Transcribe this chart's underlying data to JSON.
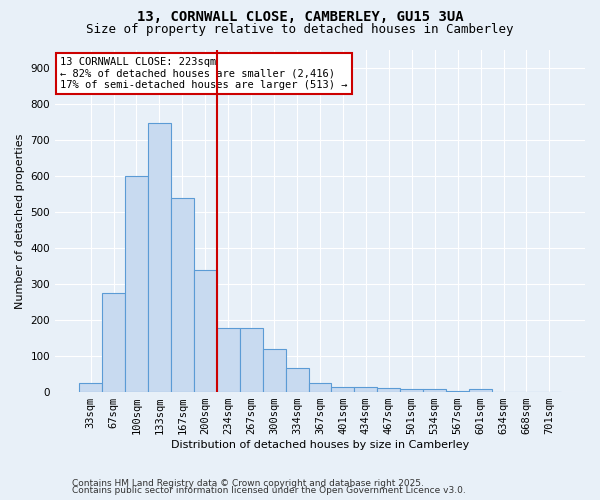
{
  "title1": "13, CORNWALL CLOSE, CAMBERLEY, GU15 3UA",
  "title2": "Size of property relative to detached houses in Camberley",
  "xlabel": "Distribution of detached houses by size in Camberley",
  "ylabel": "Number of detached properties",
  "bins": [
    "33sqm",
    "67sqm",
    "100sqm",
    "133sqm",
    "167sqm",
    "200sqm",
    "234sqm",
    "267sqm",
    "300sqm",
    "334sqm",
    "367sqm",
    "401sqm",
    "434sqm",
    "467sqm",
    "501sqm",
    "534sqm",
    "567sqm",
    "601sqm",
    "634sqm",
    "668sqm",
    "701sqm"
  ],
  "heights": [
    25,
    275,
    600,
    748,
    538,
    340,
    178,
    178,
    120,
    68,
    25,
    15,
    15,
    10,
    8,
    8,
    3,
    8,
    0,
    0,
    0
  ],
  "bar_facecolor": "#c8daf0",
  "bar_edgecolor": "#5b9bd5",
  "vline_x_index": 6,
  "vline_color": "#cc0000",
  "annotation_title": "13 CORNWALL CLOSE: 223sqm",
  "annotation_line1": "← 82% of detached houses are smaller (2,416)",
  "annotation_line2": "17% of semi-detached houses are larger (513) →",
  "annotation_box_facecolor": "#ffffff",
  "annotation_border_color": "#cc0000",
  "ylim": [
    0,
    950
  ],
  "yticks": [
    0,
    100,
    200,
    300,
    400,
    500,
    600,
    700,
    800,
    900
  ],
  "background_color": "#e8f0f8",
  "grid_color": "#ffffff",
  "footer1": "Contains HM Land Registry data © Crown copyright and database right 2025.",
  "footer2": "Contains public sector information licensed under the Open Government Licence v3.0.",
  "title_fontsize": 10,
  "subtitle_fontsize": 9,
  "axis_label_fontsize": 8,
  "tick_fontsize": 7.5,
  "footer_fontsize": 6.5
}
